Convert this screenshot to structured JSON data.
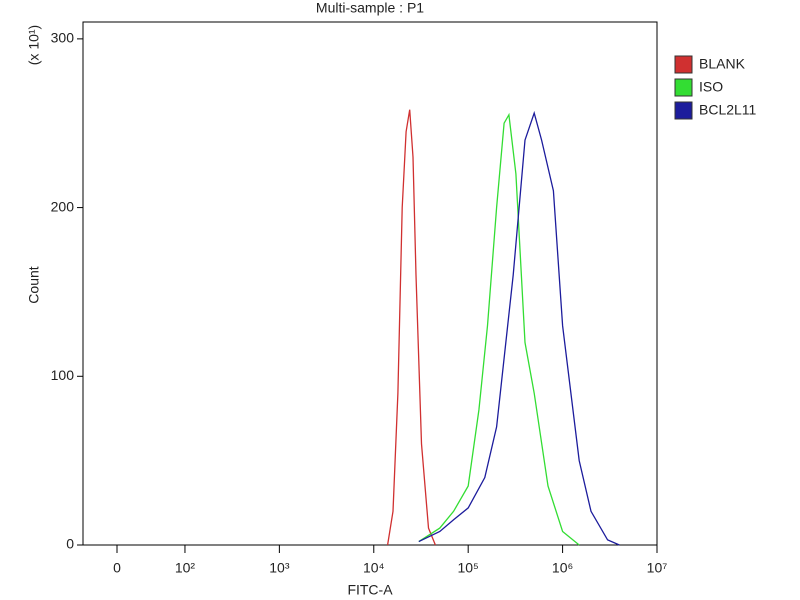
{
  "chart_data": {
    "type": "line",
    "title": "Multi-sample : P1",
    "x_label": "FITC-A",
    "y_label": "Count",
    "y_multiplier": "(x 10¹)",
    "xscale": "biexponential",
    "xlim": [
      -50,
      10000000
    ],
    "xticks": [
      0,
      {
        "value": 100,
        "label": "10²"
      },
      {
        "value": 1000,
        "label": "10³"
      },
      {
        "value": 10000,
        "label": "10⁴"
      },
      {
        "value": 100000,
        "label": "10⁵"
      },
      {
        "value": 1000000,
        "label": "10⁶"
      },
      {
        "value": 10000000,
        "label": "10⁷"
      }
    ],
    "ylim": [
      0,
      310
    ],
    "yticks": [
      0,
      100,
      200,
      300
    ],
    "legend": "right",
    "series": [
      {
        "name": "BLANK",
        "color": "#d03030",
        "x": [
          14000,
          16000,
          18000,
          20000,
          22000,
          24000,
          26000,
          28000,
          32000,
          38000,
          45000
        ],
        "values": [
          0,
          20,
          90,
          200,
          245,
          258,
          230,
          160,
          60,
          10,
          0
        ]
      },
      {
        "name": "ISO",
        "color": "#33dd33",
        "x": [
          30000,
          50000,
          70000,
          100000,
          130000,
          160000,
          200000,
          240000,
          270000,
          320000,
          400000,
          500000,
          700000,
          1000000,
          1500000
        ],
        "values": [
          2,
          10,
          20,
          35,
          80,
          130,
          200,
          250,
          255,
          220,
          120,
          90,
          35,
          8,
          0
        ]
      },
      {
        "name": "BCL2L11",
        "color": "#1c1c9c",
        "x": [
          30000,
          50000,
          70000,
          100000,
          150000,
          200000,
          300000,
          400000,
          500000,
          600000,
          800000,
          1000000,
          1500000,
          2000000,
          3000000,
          4000000
        ],
        "values": [
          2,
          8,
          15,
          22,
          40,
          70,
          160,
          240,
          256,
          240,
          210,
          130,
          50,
          20,
          3,
          0
        ]
      }
    ]
  }
}
